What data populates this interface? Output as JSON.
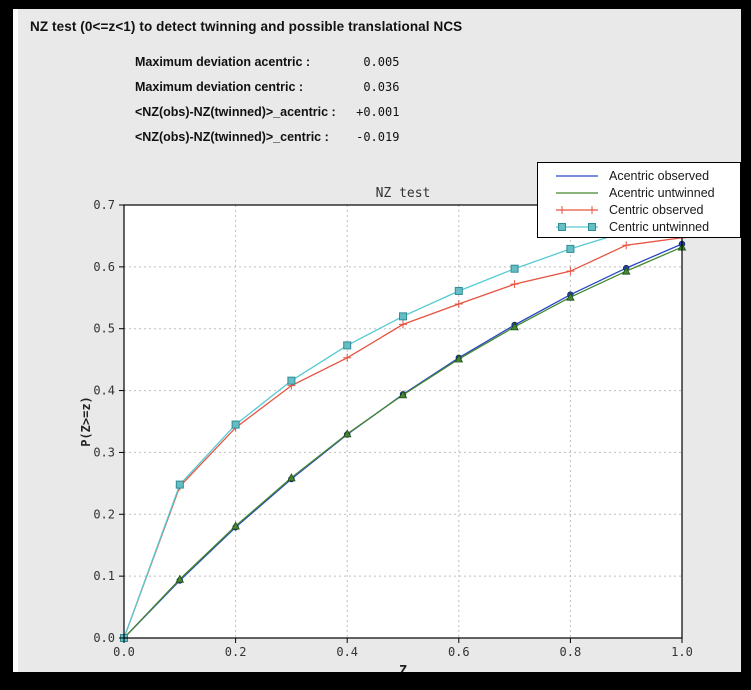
{
  "header": {
    "title": "NZ test (0<=z<1) to detect twinning and possible translational NCS",
    "stats": [
      {
        "label": "Maximum deviation acentric :",
        "value": "0.005"
      },
      {
        "label": "Maximum deviation centric :",
        "value": "0.036"
      },
      {
        "label": "<NZ(obs)-NZ(twinned)>_acentric :",
        "value": "+0.001"
      },
      {
        "label": "<NZ(obs)-NZ(twinned)>_centric :",
        "value": "-0.019"
      }
    ]
  },
  "chart_data": {
    "type": "line",
    "title": "NZ test",
    "xlabel": "Z",
    "ylabel": "P(Z>=z)",
    "xlim": [
      0.0,
      1.0
    ],
    "ylim": [
      0.0,
      0.7
    ],
    "xtick_values": [
      0.0,
      0.2,
      0.4,
      0.6,
      0.8,
      1.0
    ],
    "xtick_labels": [
      "0.0",
      "0.2",
      "0.4",
      "0.6",
      "0.8",
      "1.0"
    ],
    "ytick_values": [
      0.0,
      0.1,
      0.2,
      0.3,
      0.4,
      0.5,
      0.6,
      0.7
    ],
    "ytick_labels": [
      "0.0",
      "0.1",
      "0.2",
      "0.3",
      "0.4",
      "0.5",
      "0.6",
      "0.7"
    ],
    "grid": true,
    "legend_position": "upper right",
    "x": [
      0.0,
      0.1,
      0.2,
      0.3,
      0.4,
      0.5,
      0.6,
      0.7,
      0.8,
      0.9,
      1.0
    ],
    "series": [
      {
        "name": "Acentric observed",
        "color": "#2847c5",
        "marker": "dot",
        "marker_fill": "#2443b8",
        "marker_edge": "#16265e",
        "values": [
          0.0,
          0.093,
          0.179,
          0.257,
          0.329,
          0.394,
          0.453,
          0.506,
          0.555,
          0.598,
          0.637
        ]
      },
      {
        "name": "Acentric untwinned",
        "color": "#45882f",
        "marker": "triangle",
        "marker_fill": "#45882f",
        "marker_edge": "#1e4d1e",
        "values": [
          0.0,
          0.095,
          0.181,
          0.259,
          0.33,
          0.393,
          0.451,
          0.503,
          0.551,
          0.593,
          0.632
        ]
      },
      {
        "name": "Centric observed",
        "color": "#e65340",
        "marker": "plus",
        "marker_fill": "#e65340",
        "marker_edge": "#e65340",
        "values": [
          0.0,
          0.245,
          0.34,
          0.408,
          0.453,
          0.507,
          0.54,
          0.572,
          0.593,
          0.635,
          0.647
        ]
      },
      {
        "name": "Centric untwinned",
        "color": "#55cad3",
        "marker": "square",
        "marker_fill": "#66bec4",
        "marker_edge": "#2e8d95",
        "values": [
          0.0,
          0.248,
          0.345,
          0.416,
          0.473,
          0.52,
          0.561,
          0.597,
          0.629,
          0.657,
          0.683
        ]
      }
    ]
  }
}
